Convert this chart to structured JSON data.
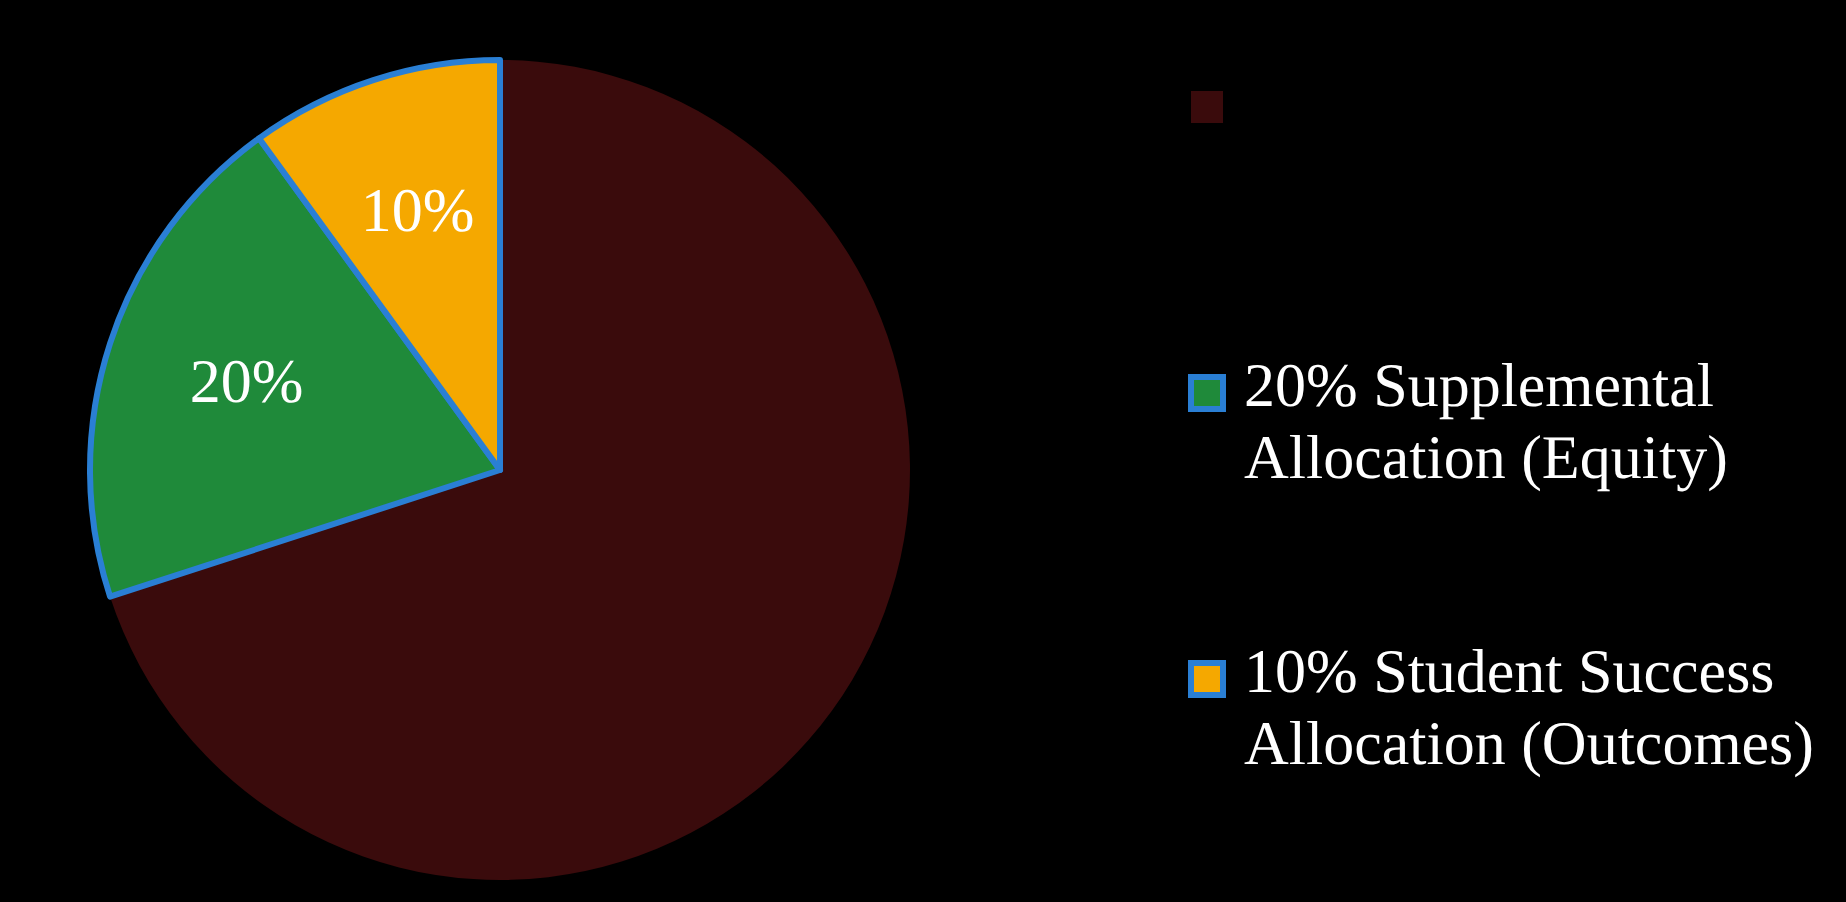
{
  "chart_data": {
    "type": "pie",
    "categories": [
      null,
      "20% Supplemental Allocation (Equity)",
      "10% Student Success Allocation (Outcomes)"
    ],
    "values": [
      70,
      20,
      10
    ],
    "colors": [
      "#3a0b0c",
      "#1f8a3a",
      "#f5a800"
    ],
    "value_labels": [
      null,
      "20%",
      "10%"
    ],
    "legend": "right"
  }
}
